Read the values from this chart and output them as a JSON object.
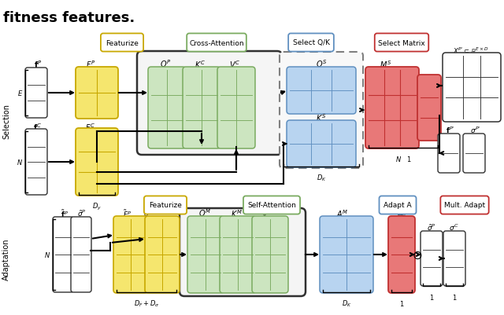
{
  "title": "fitness features.",
  "title_fontsize": 13,
  "title_fontweight": "bold",
  "bg_color": "#ffffff",
  "selection_label": "Selection",
  "adaptation_label": "Adaptation",
  "colors": {
    "yellow": "#f5e66e",
    "yellow_border": "#c8a800",
    "green": "#cce5c0",
    "green_border": "#7aab60",
    "blue": "#b8d4f0",
    "blue_border": "#6090c0",
    "red": "#e87878",
    "red_border": "#c03030",
    "white": "#ffffff",
    "dark": "#303030",
    "gray": "#808080"
  }
}
